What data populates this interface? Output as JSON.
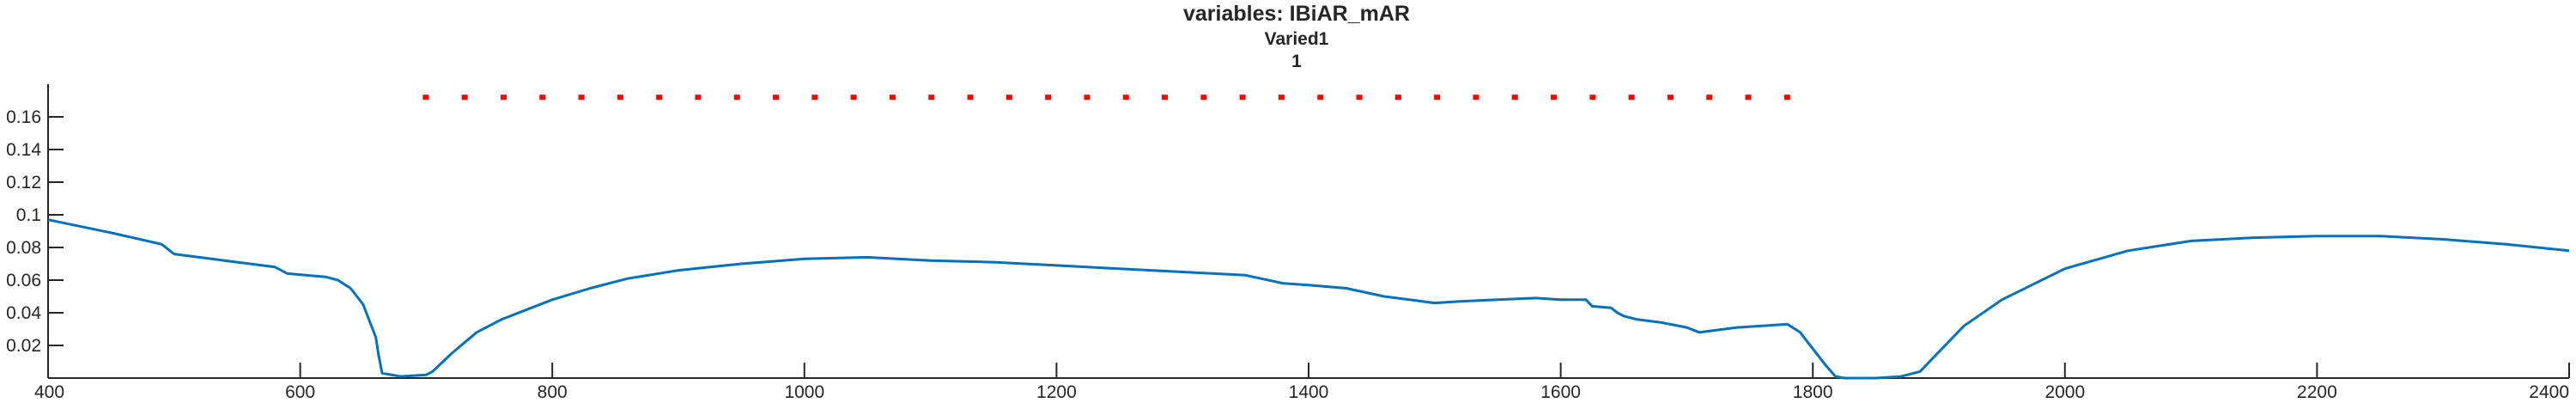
{
  "chart_data": {
    "type": "line",
    "title": [
      "variables: IBiAR_mAR",
      "Varied1",
      "1"
    ],
    "xlim": [
      400,
      2400
    ],
    "ylim": [
      0,
      0.18
    ],
    "x_ticks": [
      400,
      600,
      800,
      1000,
      1200,
      1400,
      1600,
      1800,
      2000,
      2200,
      2400
    ],
    "y_ticks": [
      0.02,
      0.04,
      0.06,
      0.08,
      0.1,
      0.12,
      0.14,
      0.16
    ],
    "x_tick_labels": [
      "400",
      "600",
      "800",
      "1000",
      "1200",
      "1400",
      "1600",
      "1800",
      "2000",
      "2200",
      "2400"
    ],
    "y_tick_labels": [
      "0.02",
      "0.04",
      "0.06",
      "0.08",
      "0.1",
      "0.12",
      "0.14",
      "0.16"
    ],
    "grid": false,
    "series": [
      {
        "color": "#0072bd",
        "x": [
          400,
          450,
          490,
          500,
          540,
          580,
          590,
          620,
          630,
          640,
          645,
          650,
          655,
          660,
          662,
          665,
          680,
          700,
          705,
          720,
          740,
          760,
          780,
          800,
          830,
          860,
          900,
          950,
          1000,
          1050,
          1100,
          1150,
          1200,
          1250,
          1300,
          1350,
          1380,
          1400,
          1430,
          1460,
          1470,
          1490,
          1500,
          1520,
          1550,
          1580,
          1600,
          1620,
          1625,
          1640,
          1645,
          1650,
          1660,
          1680,
          1700,
          1710,
          1720,
          1730,
          1740,
          1760,
          1780,
          1790,
          1800,
          1810,
          1818,
          1825,
          1850,
          1870,
          1885,
          1900,
          1920,
          1950,
          2000,
          2050,
          2100,
          2150,
          2200,
          2250,
          2300,
          2350,
          2400
        ],
        "y": [
          0.097,
          0.089,
          0.082,
          0.076,
          0.072,
          0.068,
          0.064,
          0.062,
          0.06,
          0.055,
          0.05,
          0.045,
          0.035,
          0.025,
          0.015,
          0.003,
          0.001,
          0.002,
          0.004,
          0.015,
          0.028,
          0.036,
          0.042,
          0.048,
          0.055,
          0.061,
          0.066,
          0.07,
          0.073,
          0.074,
          0.072,
          0.071,
          0.069,
          0.067,
          0.065,
          0.063,
          0.058,
          0.057,
          0.055,
          0.05,
          0.049,
          0.047,
          0.046,
          0.047,
          0.048,
          0.049,
          0.048,
          0.048,
          0.044,
          0.043,
          0.04,
          0.038,
          0.036,
          0.034,
          0.031,
          0.028,
          0.029,
          0.03,
          0.031,
          0.032,
          0.033,
          0.028,
          0.018,
          0.008,
          0.001,
          0.0,
          0.0,
          0.001,
          0.004,
          0.016,
          0.032,
          0.048,
          0.067,
          0.078,
          0.084,
          0.086,
          0.087,
          0.087,
          0.085,
          0.082,
          0.078
        ]
      },
      {
        "color": "#ff0000",
        "style": "dotted",
        "x": [
          700,
          1780
        ],
        "y": [
          0.172,
          0.172
        ]
      }
    ]
  }
}
